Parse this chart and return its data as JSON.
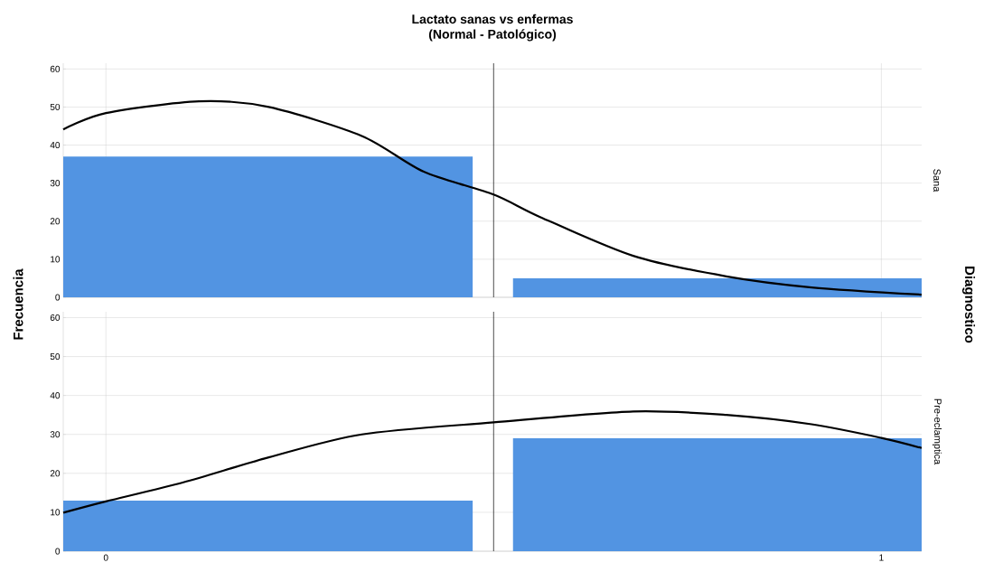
{
  "chart_data": [
    {
      "type": "histogram",
      "title": "Lactato sanas vs enfermas",
      "subtitle": "(Normal - Patológico)",
      "ylabel": "Frecuencia",
      "y2label": "Sana",
      "annotations": [
        "Diagnostico"
      ],
      "bins": [
        -0.055,
        0.473,
        0.525,
        1.052
      ],
      "values": [
        37,
        0,
        5
      ],
      "color": "#5294e2",
      "series": [
        {
          "type": "line",
          "color": "#000000",
          "x": [
            -0.055,
            0,
            0.12,
            0.21,
            0.33,
            0.41,
            0.5,
            0.56,
            0.68,
            0.8,
            0.91,
            1.052
          ],
          "values": [
            44.1,
            48.4,
            51.5,
            50,
            42.4,
            33,
            27,
            21.1,
            10.9,
            5.5,
            2.6,
            0.7
          ]
        }
      ],
      "ref_lines": [
        {
          "axis": "x",
          "value": 0.5,
          "color": "#000000"
        }
      ],
      "xlim": [
        -0.055,
        1.052
      ],
      "ylim": [
        0,
        61.5
      ],
      "xticks": [
        0,
        1
      ],
      "yticks": [
        0,
        10,
        20,
        30,
        40,
        50,
        60
      ],
      "grid": true,
      "tick_labels": "y"
    },
    {
      "type": "histogram",
      "y2label": "Pre-eclamptica",
      "bins": [
        -0.055,
        0.473,
        0.525,
        1.052
      ],
      "values": [
        13,
        0,
        29
      ],
      "color": "#5294e2",
      "series": [
        {
          "type": "line",
          "color": "#000000",
          "x": [
            -0.055,
            0,
            0.1,
            0.21,
            0.33,
            0.5,
            0.68,
            0.8,
            0.91,
            1,
            1.052
          ],
          "values": [
            9.9,
            12.8,
            17.7,
            24.1,
            30,
            33.1,
            35.9,
            35,
            32.6,
            29.1,
            26.5
          ]
        }
      ],
      "ref_lines": [
        {
          "axis": "x",
          "value": 0.5,
          "color": "#000000"
        }
      ],
      "xlim": [
        -0.055,
        1.052
      ],
      "ylim": [
        0,
        61.5
      ],
      "xticks": [
        0,
        1
      ],
      "yticks": [
        0,
        10,
        20,
        30,
        40,
        50,
        60
      ],
      "grid": true
    }
  ]
}
